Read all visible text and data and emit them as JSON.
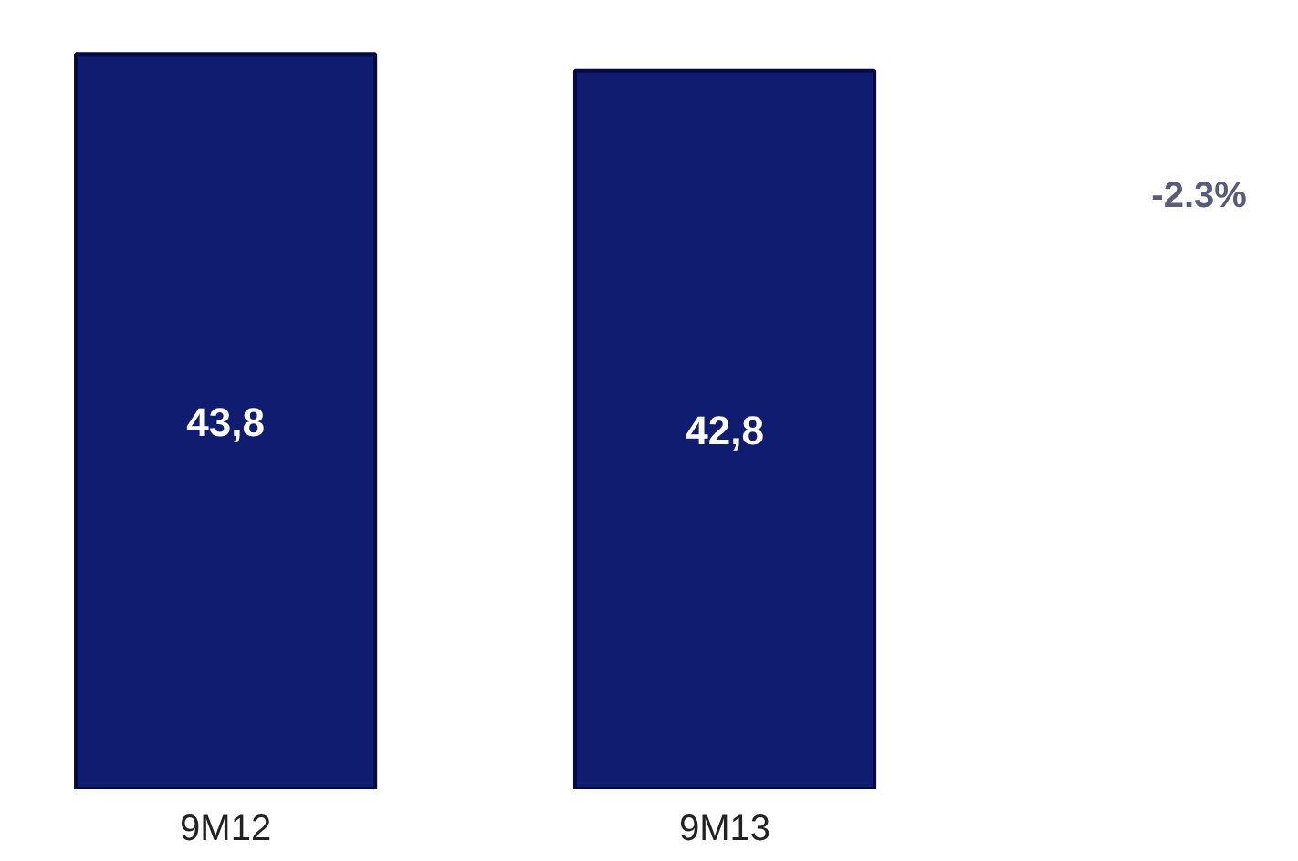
{
  "chart_data": {
    "type": "bar",
    "categories": [
      "9M12",
      "9M13"
    ],
    "values": [
      43.8,
      42.8
    ],
    "value_labels": [
      "43,8",
      "42,8"
    ],
    "color": "#101c70",
    "annotations": [
      "-2.3%"
    ],
    "grid": false
  }
}
